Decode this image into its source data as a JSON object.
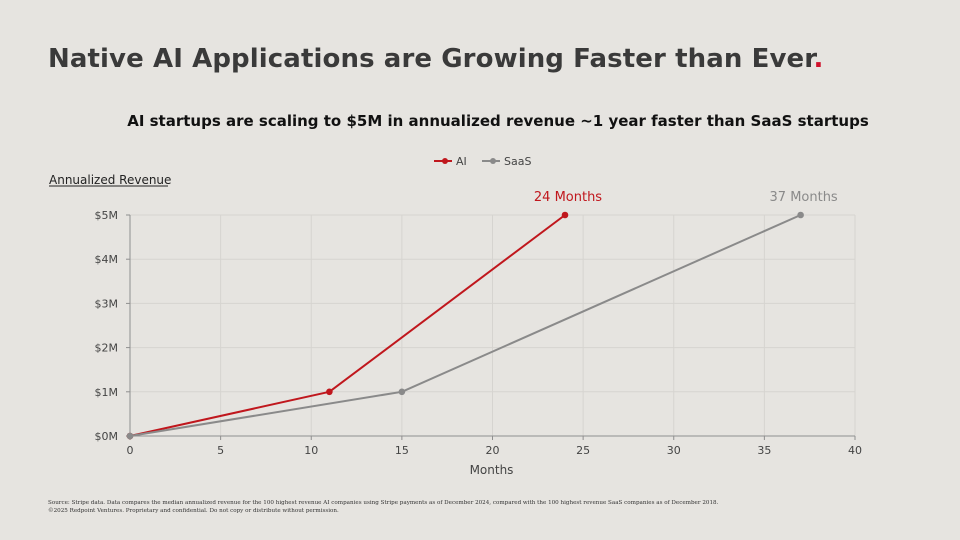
{
  "slide": {
    "title": "Native AI Applications are Growing Faster than Ever",
    "title_dot": ".",
    "subtitle": "AI startups are scaling to $5M in annualized revenue ~1 year faster than SaaS startups",
    "footnote_line1": "Source: Stripe data. Data compares the median annualized revenue for the 100 highest revenue AI companies using Stripe payments as of December 2024, compared with the 100 highest revenue SaaS companies as of December 2018.",
    "footnote_line2": "©2025 Redpoint Ventures. Proprietary and confidential. Do not copy or distribute without permission."
  },
  "colors": {
    "ai": "#c0171d",
    "saas": "#8a8a8a",
    "grid": "#d6d4d0",
    "axis": "#8f8f8f",
    "title_dot": "#d0112b"
  },
  "chart_data": {
    "type": "line",
    "title": "AI startups are scaling to $5M in annualized revenue ~1 year faster than SaaS startups",
    "xlabel": "Months",
    "ylabel": "Annualized Revenue",
    "xlim": [
      0,
      40
    ],
    "ylim": [
      0,
      5
    ],
    "xticks": [
      0,
      5,
      10,
      15,
      20,
      25,
      30,
      35,
      40
    ],
    "yticks": [
      0,
      1,
      2,
      3,
      4,
      5
    ],
    "ytick_labels": [
      "$0M",
      "$1M",
      "$2M",
      "$3M",
      "$4M",
      "$5M"
    ],
    "grid": true,
    "legend_position": "top-center",
    "series": [
      {
        "name": "AI",
        "color": "#c0171d",
        "x": [
          0,
          11,
          24
        ],
        "y": [
          0,
          1,
          5
        ],
        "end_label": "24 Months"
      },
      {
        "name": "SaaS",
        "color": "#8a8a8a",
        "x": [
          0,
          15,
          37
        ],
        "y": [
          0,
          1,
          5
        ],
        "end_label": "37 Months"
      }
    ]
  }
}
